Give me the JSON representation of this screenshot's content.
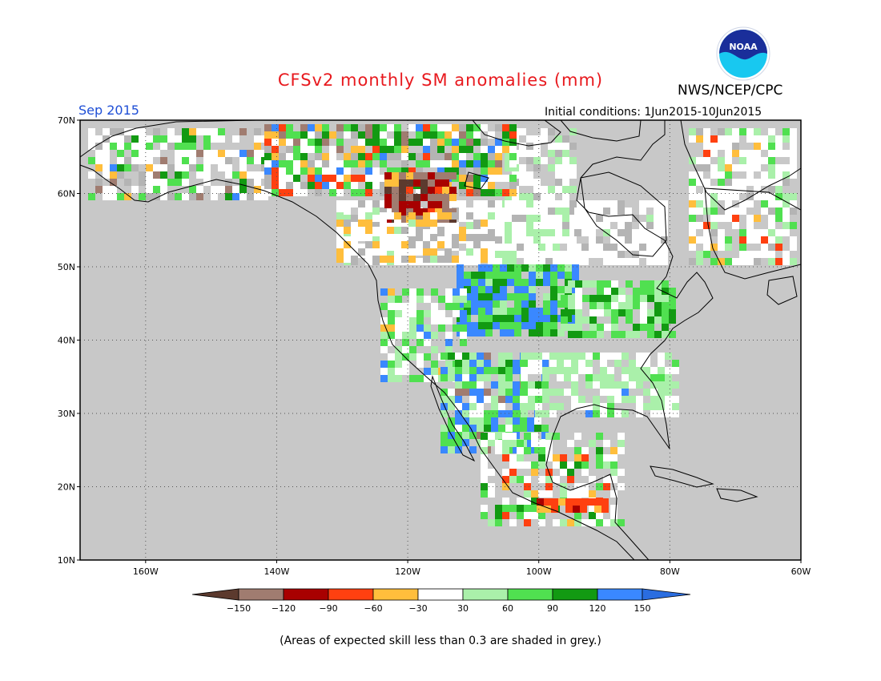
{
  "title": "CFSv2 monthly SM anomalies (mm)",
  "agency": "NWS/NCEP/CPC",
  "valid_month": "Sep 2015",
  "initial_conditions": "Initial conditions: 1Jun2015-10Jun2015",
  "caption": "(Areas of expected skill less than 0.3 are shaded in grey.)",
  "logo": {
    "icon": "noaa-logo-icon",
    "text": "NOAA"
  },
  "map": {
    "background_color": "#c8c8c8",
    "lat_labels": [
      "70N",
      "60N",
      "50N",
      "40N",
      "30N",
      "20N",
      "10N"
    ],
    "lon_labels": [
      "160W",
      "140W",
      "120W",
      "100W",
      "80W",
      "60W"
    ]
  },
  "legend": {
    "tick_labels": [
      "-150",
      "-120",
      "-90",
      "-60",
      "-30",
      "30",
      "60",
      "90",
      "120",
      "150"
    ],
    "colors": [
      "#5c3a2e",
      "#a07c70",
      "#a80000",
      "#ff4010",
      "#ffbe3c",
      "#ffffff",
      "#aaf0aa",
      "#50e050",
      "#129a12",
      "#3a88ff",
      "#2a6de0"
    ]
  }
}
